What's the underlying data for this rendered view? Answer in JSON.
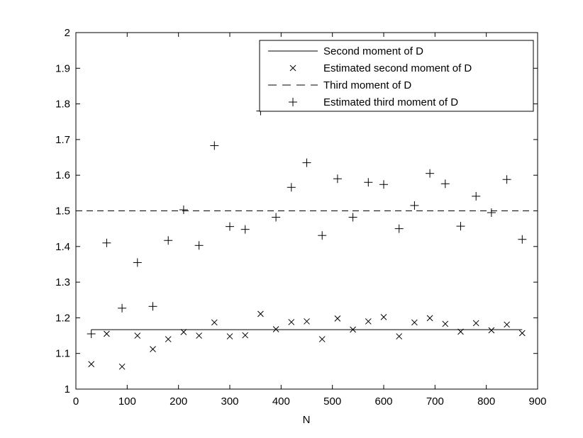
{
  "chart_data": {
    "type": "scatter",
    "title": "",
    "xlabel": "N",
    "ylabel": "",
    "xlim": [
      0,
      900
    ],
    "ylim": [
      1,
      2
    ],
    "xticks": [
      0,
      100,
      200,
      300,
      400,
      500,
      600,
      700,
      800,
      900
    ],
    "yticks": [
      1,
      1.1,
      1.2,
      1.3,
      1.4,
      1.5,
      1.6,
      1.7,
      1.8,
      1.9,
      2
    ],
    "grid": false,
    "legend_position": "top-right",
    "series": [
      {
        "name": "Second moment of D",
        "kind": "line",
        "style": "solid",
        "x": [
          30,
          870
        ],
        "y": [
          1.1667,
          1.1667
        ]
      },
      {
        "name": "Estimated second moment of D",
        "kind": "marker",
        "marker": "x",
        "x": [
          30,
          60,
          90,
          120,
          150,
          180,
          210,
          240,
          270,
          300,
          330,
          360,
          390,
          420,
          450,
          480,
          510,
          540,
          570,
          600,
          630,
          660,
          690,
          720,
          750,
          780,
          810,
          840,
          870
        ],
        "y": [
          1.07,
          1.155,
          1.063,
          1.15,
          1.112,
          1.14,
          1.16,
          1.15,
          1.187,
          1.148,
          1.151,
          1.211,
          1.168,
          1.188,
          1.19,
          1.14,
          1.198,
          1.167,
          1.19,
          1.202,
          1.148,
          1.187,
          1.199,
          1.183,
          1.161,
          1.185,
          1.165,
          1.181,
          1.157
        ]
      },
      {
        "name": "Third moment of D",
        "kind": "line",
        "style": "dashed",
        "x": [
          0,
          900
        ],
        "y": [
          1.5,
          1.5
        ]
      },
      {
        "name": "Estimated third moment of D",
        "kind": "marker",
        "marker": "+",
        "x": [
          30,
          60,
          90,
          120,
          150,
          180,
          210,
          240,
          270,
          300,
          330,
          360,
          390,
          420,
          450,
          480,
          510,
          540,
          570,
          600,
          630,
          660,
          690,
          720,
          750,
          780,
          810,
          840,
          870
        ],
        "y": [
          1.155,
          1.41,
          1.227,
          1.355,
          1.232,
          1.417,
          1.503,
          1.403,
          1.683,
          1.456,
          1.448,
          1.78,
          1.482,
          1.566,
          1.635,
          1.431,
          1.59,
          1.482,
          1.58,
          1.574,
          1.45,
          1.515,
          1.605,
          1.576,
          1.457,
          1.541,
          1.495,
          1.588,
          1.42
        ]
      }
    ]
  }
}
